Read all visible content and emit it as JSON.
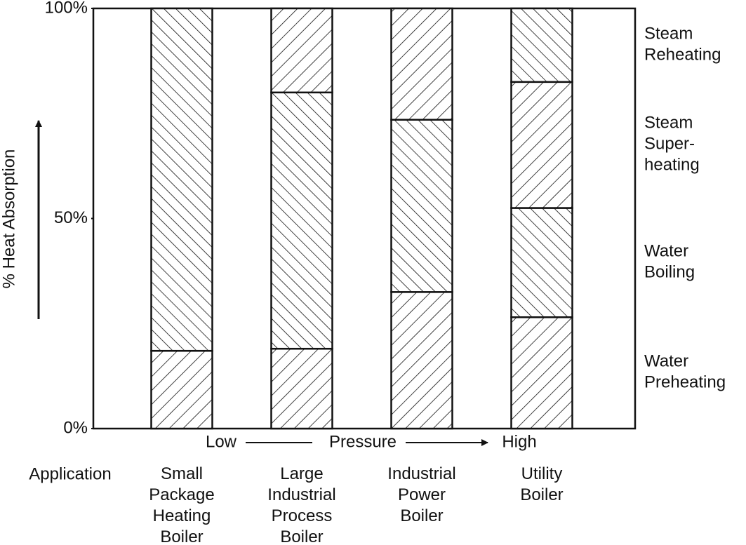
{
  "chart_data": {
    "type": "stacked-bar",
    "y_label": "% Heat Absorption",
    "x_low": "Low",
    "x_label": "Pressure",
    "x_high": "High",
    "row_label": "Application",
    "categories": [
      "Small\nPackage\nHeating\nBoiler",
      "Large\nIndustrial\nProcess\nBoiler",
      "Industrial\nPower\nBoiler",
      "Utility\nBoiler"
    ],
    "series": [
      {
        "name": "Water\nPreheating",
        "color": "#111111",
        "hatch": "/",
        "values": [
          18.5,
          19,
          32.5,
          26.5
        ]
      },
      {
        "name": "Water\nBoiling",
        "color": "#111111",
        "hatch": "\\",
        "values": [
          81.5,
          61,
          41,
          26
        ]
      },
      {
        "name": "Steam\nSuper-\nheating",
        "color": "#111111",
        "hatch": "/",
        "values": [
          null,
          20,
          26.5,
          30
        ]
      },
      {
        "name": "Steam\nReheating",
        "color": "#111111",
        "hatch": "\\",
        "values": [
          null,
          null,
          null,
          17.5
        ]
      }
    ],
    "ylim": [
      0,
      100
    ],
    "yticks": [
      {
        "value": 0,
        "label": "0%"
      },
      {
        "value": 50,
        "label": "50%"
      },
      {
        "value": 100,
        "label": "100%"
      }
    ]
  }
}
